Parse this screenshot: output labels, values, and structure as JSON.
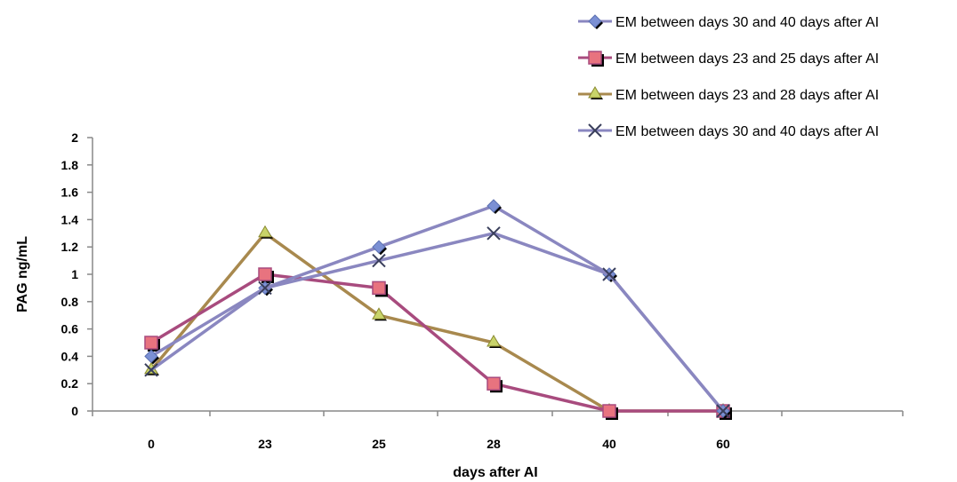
{
  "chart_data": {
    "type": "line",
    "title": "",
    "xlabel": "days after AI",
    "ylabel": "PAG ng/mL",
    "categories": [
      "0",
      "23",
      "25",
      "28",
      "40",
      "60"
    ],
    "ylim": [
      0,
      2
    ],
    "ytick_step": 0.2,
    "yticks": [
      "0",
      "0.2",
      "0.4",
      "0.6",
      "0.8",
      "1",
      "1.2",
      "1.4",
      "1.6",
      "1.8",
      "2"
    ],
    "grid": false,
    "legend_position": "top-right",
    "series": [
      {
        "name": "EM between days 30 and 40 days after AI",
        "marker": "diamond",
        "color": "#7b90d4",
        "line_color": "#8a87c0",
        "values": [
          0.4,
          0.9,
          1.2,
          1.5,
          1.0,
          0
        ]
      },
      {
        "name": "EM between days 23 and 25  days after AI",
        "marker": "square",
        "color": "#e8737f",
        "line_color": "#a84b7e",
        "values": [
          0.5,
          1.0,
          0.9,
          0.2,
          0,
          0
        ]
      },
      {
        "name": "EM between days 23 and 28  days after AI",
        "marker": "triangle",
        "color": "#c9d46a",
        "line_color": "#a8894e",
        "values": [
          0.3,
          1.3,
          0.7,
          0.5,
          0,
          0
        ]
      },
      {
        "name": "EM between days 30 and 40  days after AI",
        "marker": "x",
        "color": "#3a3f5c",
        "line_color": "#8a87c0",
        "values": [
          0.3,
          0.9,
          1.1,
          1.3,
          1.0,
          0
        ]
      }
    ]
  }
}
